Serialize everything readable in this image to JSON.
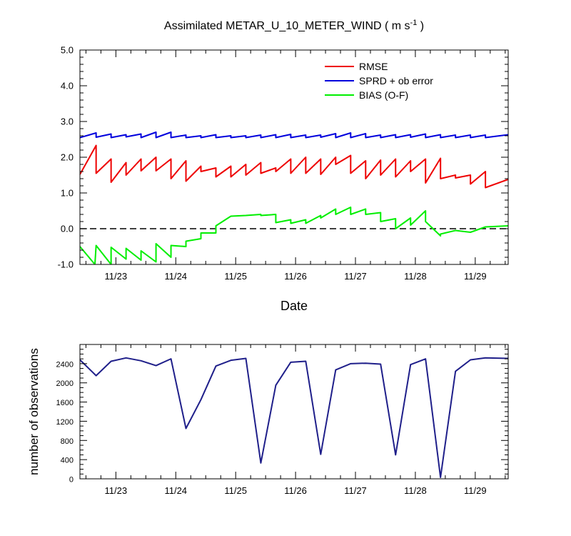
{
  "chart_data": [
    {
      "type": "line",
      "title_main": "Assimilated METAR_U_10_METER_WIND ( m s",
      "title_sup": "-1",
      "title_end": " )",
      "xlabel": "Date",
      "ylabel": "",
      "x_range": [
        22.4,
        29.55
      ],
      "ylim": [
        -1.0,
        5.0
      ],
      "y_ticks": [
        -1.0,
        0.0,
        1.0,
        2.0,
        3.0,
        4.0,
        5.0
      ],
      "y_tick_labels": [
        "-1.0",
        "0.0",
        "1.0",
        "2.0",
        "3.0",
        "4.0",
        "5.0"
      ],
      "x_ticks": [
        23,
        24,
        25,
        26,
        27,
        28,
        29
      ],
      "x_tick_labels": [
        "11/23",
        "11/24",
        "11/25",
        "11/26",
        "11/27",
        "11/28",
        "11/29"
      ],
      "reference_line": 0.0,
      "legend_position": "top-right",
      "series": [
        {
          "name": "RMSE",
          "color": "#ee0000",
          "x": [
            22.4,
            22.67,
            22.67,
            22.92,
            22.92,
            23.17,
            23.17,
            23.42,
            23.42,
            23.67,
            23.67,
            23.92,
            23.92,
            24.17,
            24.17,
            24.42,
            24.42,
            24.67,
            24.67,
            24.92,
            24.92,
            25.17,
            25.17,
            25.42,
            25.42,
            25.67,
            25.67,
            25.92,
            25.92,
            26.17,
            26.17,
            26.42,
            26.42,
            26.67,
            26.67,
            26.92,
            26.92,
            27.17,
            27.17,
            27.42,
            27.42,
            27.67,
            27.67,
            27.92,
            27.92,
            28.17,
            28.17,
            28.42,
            28.42,
            28.67,
            28.67,
            28.92,
            28.92,
            29.17,
            29.17,
            29.55
          ],
          "y": [
            1.52,
            2.33,
            1.55,
            1.95,
            1.3,
            1.85,
            1.5,
            1.95,
            1.62,
            2.0,
            1.62,
            1.95,
            1.4,
            1.9,
            1.33,
            1.75,
            1.6,
            1.7,
            1.45,
            1.75,
            1.45,
            1.8,
            1.5,
            1.85,
            1.55,
            1.7,
            1.6,
            1.95,
            1.55,
            2.0,
            1.55,
            1.95,
            1.52,
            2.0,
            1.8,
            2.05,
            1.55,
            1.9,
            1.4,
            1.92,
            1.5,
            1.95,
            1.45,
            1.9,
            1.6,
            1.95,
            1.28,
            1.97,
            1.4,
            1.5,
            1.42,
            1.5,
            1.25,
            1.6,
            1.15,
            1.38
          ]
        },
        {
          "name": "SPRD + ob error",
          "color": "#0000dd",
          "x": [
            22.4,
            22.67,
            22.67,
            22.92,
            22.92,
            23.17,
            23.17,
            23.42,
            23.42,
            23.67,
            23.67,
            23.92,
            23.92,
            24.17,
            24.17,
            24.42,
            24.42,
            24.67,
            24.67,
            24.92,
            24.92,
            25.17,
            25.17,
            25.42,
            25.42,
            25.67,
            25.67,
            25.92,
            25.92,
            26.17,
            26.17,
            26.42,
            26.42,
            26.67,
            26.67,
            26.92,
            26.92,
            27.17,
            27.17,
            27.42,
            27.42,
            27.67,
            27.67,
            27.92,
            27.92,
            28.17,
            28.17,
            28.42,
            28.42,
            28.67,
            28.67,
            28.92,
            28.92,
            29.17,
            29.17,
            29.55
          ],
          "y": [
            2.55,
            2.68,
            2.56,
            2.65,
            2.55,
            2.63,
            2.57,
            2.65,
            2.55,
            2.7,
            2.55,
            2.7,
            2.55,
            2.62,
            2.55,
            2.6,
            2.55,
            2.63,
            2.55,
            2.6,
            2.55,
            2.6,
            2.55,
            2.62,
            2.55,
            2.63,
            2.55,
            2.64,
            2.55,
            2.62,
            2.55,
            2.62,
            2.56,
            2.66,
            2.55,
            2.68,
            2.55,
            2.66,
            2.55,
            2.62,
            2.55,
            2.63,
            2.55,
            2.63,
            2.56,
            2.65,
            2.55,
            2.63,
            2.55,
            2.62,
            2.55,
            2.62,
            2.55,
            2.62,
            2.55,
            2.63
          ]
        },
        {
          "name": "BIAS (O-F)",
          "color": "#00ee00",
          "x": [
            22.4,
            22.65,
            22.67,
            22.92,
            22.92,
            23.17,
            23.17,
            23.42,
            23.42,
            23.67,
            23.67,
            23.92,
            23.92,
            24.17,
            24.17,
            24.42,
            24.42,
            24.67,
            24.67,
            24.92,
            24.92,
            25.17,
            25.17,
            25.42,
            25.42,
            25.67,
            25.67,
            25.92,
            25.92,
            26.17,
            26.17,
            26.42,
            26.42,
            26.67,
            26.67,
            26.92,
            26.92,
            27.17,
            27.17,
            27.42,
            27.42,
            27.67,
            27.67,
            27.92,
            27.92,
            28.17,
            28.17,
            28.42,
            28.42,
            28.67,
            28.67,
            28.92,
            28.92,
            29.17,
            29.17,
            29.55
          ],
          "y": [
            -0.5,
            -1.0,
            -0.47,
            -1.0,
            -0.52,
            -0.85,
            -0.55,
            -0.88,
            -0.62,
            -0.93,
            -0.42,
            -0.8,
            -0.47,
            -0.5,
            -0.35,
            -0.28,
            -0.12,
            -0.12,
            0.08,
            0.35,
            0.35,
            0.37,
            0.37,
            0.4,
            0.37,
            0.4,
            0.17,
            0.25,
            0.15,
            0.25,
            0.15,
            0.37,
            0.3,
            0.55,
            0.4,
            0.6,
            0.4,
            0.55,
            0.4,
            0.45,
            0.2,
            0.28,
            0.0,
            0.3,
            0.1,
            0.5,
            0.2,
            -0.2,
            -0.15,
            -0.05,
            -0.05,
            -0.1,
            -0.1,
            0.05,
            0.05,
            0.08
          ]
        }
      ]
    },
    {
      "type": "line",
      "title": "",
      "xlabel": "",
      "ylabel": "number of observations",
      "x_range": [
        22.4,
        29.55
      ],
      "ylim": [
        0,
        2800
      ],
      "y_ticks": [
        0,
        400,
        800,
        1200,
        1600,
        2000,
        2400
      ],
      "y_tick_labels": [
        "0",
        "400",
        "800",
        "1200",
        "1600",
        "2000",
        "2400"
      ],
      "x_ticks": [
        23,
        24,
        25,
        26,
        27,
        28,
        29
      ],
      "x_tick_labels": [
        "11/23",
        "11/24",
        "11/25",
        "11/26",
        "11/27",
        "11/28",
        "11/29"
      ],
      "series": [
        {
          "name": "",
          "color": "#1f1f8a",
          "x": [
            22.4,
            22.67,
            22.92,
            23.17,
            23.42,
            23.67,
            23.92,
            24.17,
            24.42,
            24.67,
            24.92,
            25.17,
            25.42,
            25.67,
            25.92,
            26.17,
            26.42,
            26.67,
            26.92,
            27.17,
            27.42,
            27.67,
            27.92,
            28.17,
            28.42,
            28.67,
            28.92,
            29.17,
            29.55
          ],
          "y": [
            2480,
            2150,
            2450,
            2520,
            2460,
            2360,
            2500,
            1050,
            1650,
            2350,
            2470,
            2510,
            330,
            1950,
            2430,
            2450,
            510,
            2270,
            2400,
            2410,
            2390,
            500,
            2380,
            2500,
            30,
            2240,
            2480,
            2520,
            2510
          ]
        }
      ]
    }
  ]
}
